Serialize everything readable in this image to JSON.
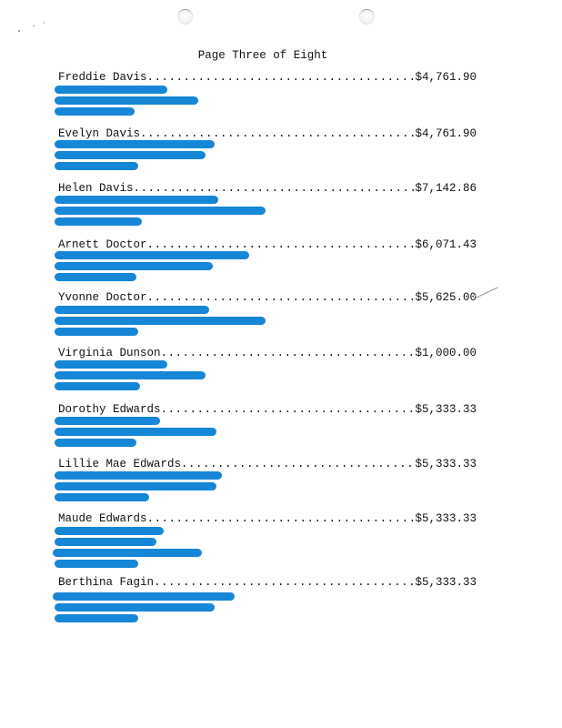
{
  "document": {
    "page_label": "Page Three of Eight"
  },
  "entries": [
    {
      "name": "Freddie Davis",
      "amount": "$4,761.90"
    },
    {
      "name": "Evelyn Davis",
      "amount": "$4,761.90"
    },
    {
      "name": "Helen Davis",
      "amount": "$7,142.86"
    },
    {
      "name": "Arnett Doctor",
      "amount": "$6,071.43"
    },
    {
      "name": "Yvonne Doctor",
      "amount": "$5,625.00"
    },
    {
      "name": "Virginia Dunson",
      "amount": "$1,000.00"
    },
    {
      "name": "Dorothy Edwards",
      "amount": "$5,333.33"
    },
    {
      "name": "Lillie Mae Edwards",
      "amount": "$5,333.33"
    },
    {
      "name": "Maude Edwards",
      "amount": "$5,333.33"
    },
    {
      "name": "Berthina Fagin",
      "amount": "$5,333.33"
    }
  ],
  "colors": {
    "redaction": "#0a7fd4",
    "text": "#111111",
    "paper": "#ffffff"
  }
}
